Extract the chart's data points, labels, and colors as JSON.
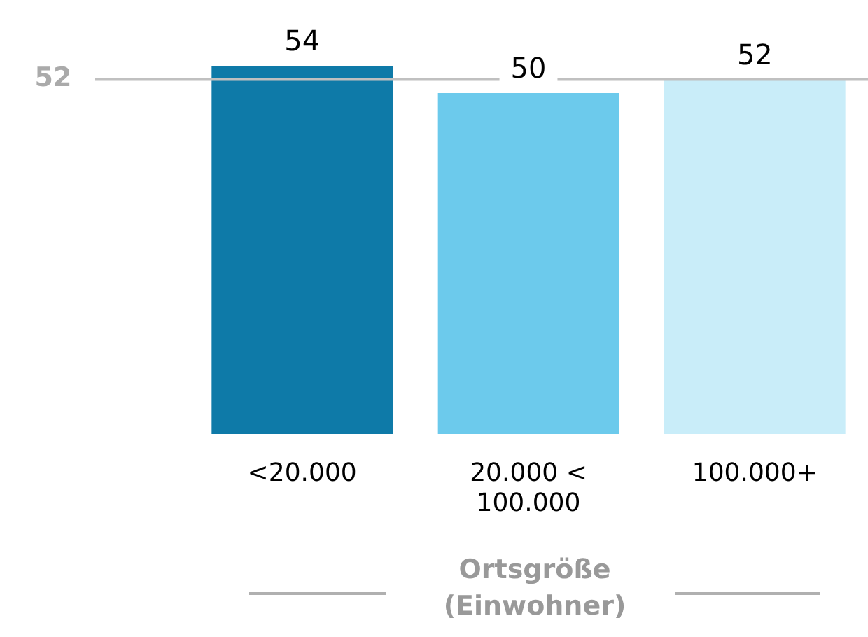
{
  "chart_data": {
    "type": "bar",
    "xlabel": "Ortsgröße\n(Einwohner)",
    "categories": [
      "<20.000",
      "20.000 <\n100.000",
      "100.000+"
    ],
    "values": [
      54,
      50,
      52
    ],
    "colors": [
      "#0e7aa8",
      "#6ccaec",
      "#c9edf9"
    ],
    "data_labels": true,
    "ref_lines": [
      {
        "axis": "y",
        "value": 52,
        "label": "52",
        "color": "#c0c0c0"
      }
    ],
    "grid": false,
    "legend": false
  }
}
